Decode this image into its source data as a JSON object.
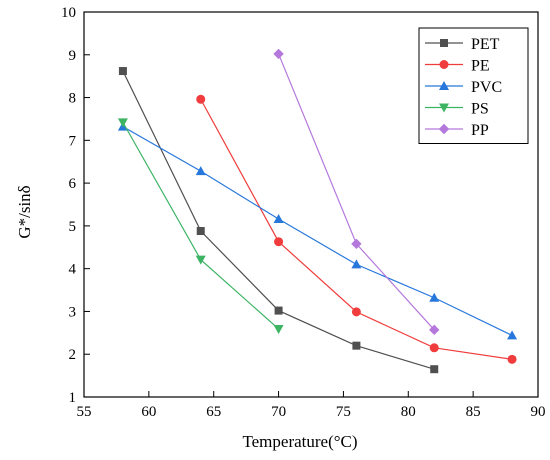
{
  "chart_data": {
    "type": "line",
    "title": "",
    "xlabel": "Temperature(°C)",
    "ylabel": "G*/sinδ",
    "xlim": [
      55,
      90
    ],
    "ylim": [
      1,
      10
    ],
    "xticks": [
      55,
      60,
      65,
      70,
      75,
      80,
      85,
      90
    ],
    "yticks": [
      1,
      2,
      3,
      4,
      5,
      6,
      7,
      8,
      9,
      10
    ],
    "grid": false,
    "legend_position": "top-right",
    "series": [
      {
        "name": "PET",
        "color": "#505050",
        "marker": "square",
        "x": [
          58,
          64,
          70,
          76,
          82
        ],
        "y": [
          8.62,
          4.88,
          3.02,
          2.2,
          1.65
        ]
      },
      {
        "name": "PE",
        "color": "#f03c3c",
        "marker": "circle",
        "x": [
          64,
          70,
          76,
          82,
          88
        ],
        "y": [
          7.96,
          4.63,
          2.99,
          2.15,
          1.88
        ]
      },
      {
        "name": "PVC",
        "color": "#2878dc",
        "marker": "triangle-up",
        "x": [
          58,
          64,
          70,
          76,
          82,
          88
        ],
        "y": [
          7.32,
          6.28,
          5.16,
          4.1,
          3.32,
          2.44
        ]
      },
      {
        "name": "PS",
        "color": "#3cb464",
        "marker": "triangle-down",
        "x": [
          58,
          64,
          70
        ],
        "y": [
          7.42,
          4.21,
          2.59
        ]
      },
      {
        "name": "PP",
        "color": "#b478dc",
        "marker": "diamond",
        "x": [
          70,
          76,
          82
        ],
        "y": [
          9.02,
          4.58,
          2.57
        ]
      }
    ]
  }
}
